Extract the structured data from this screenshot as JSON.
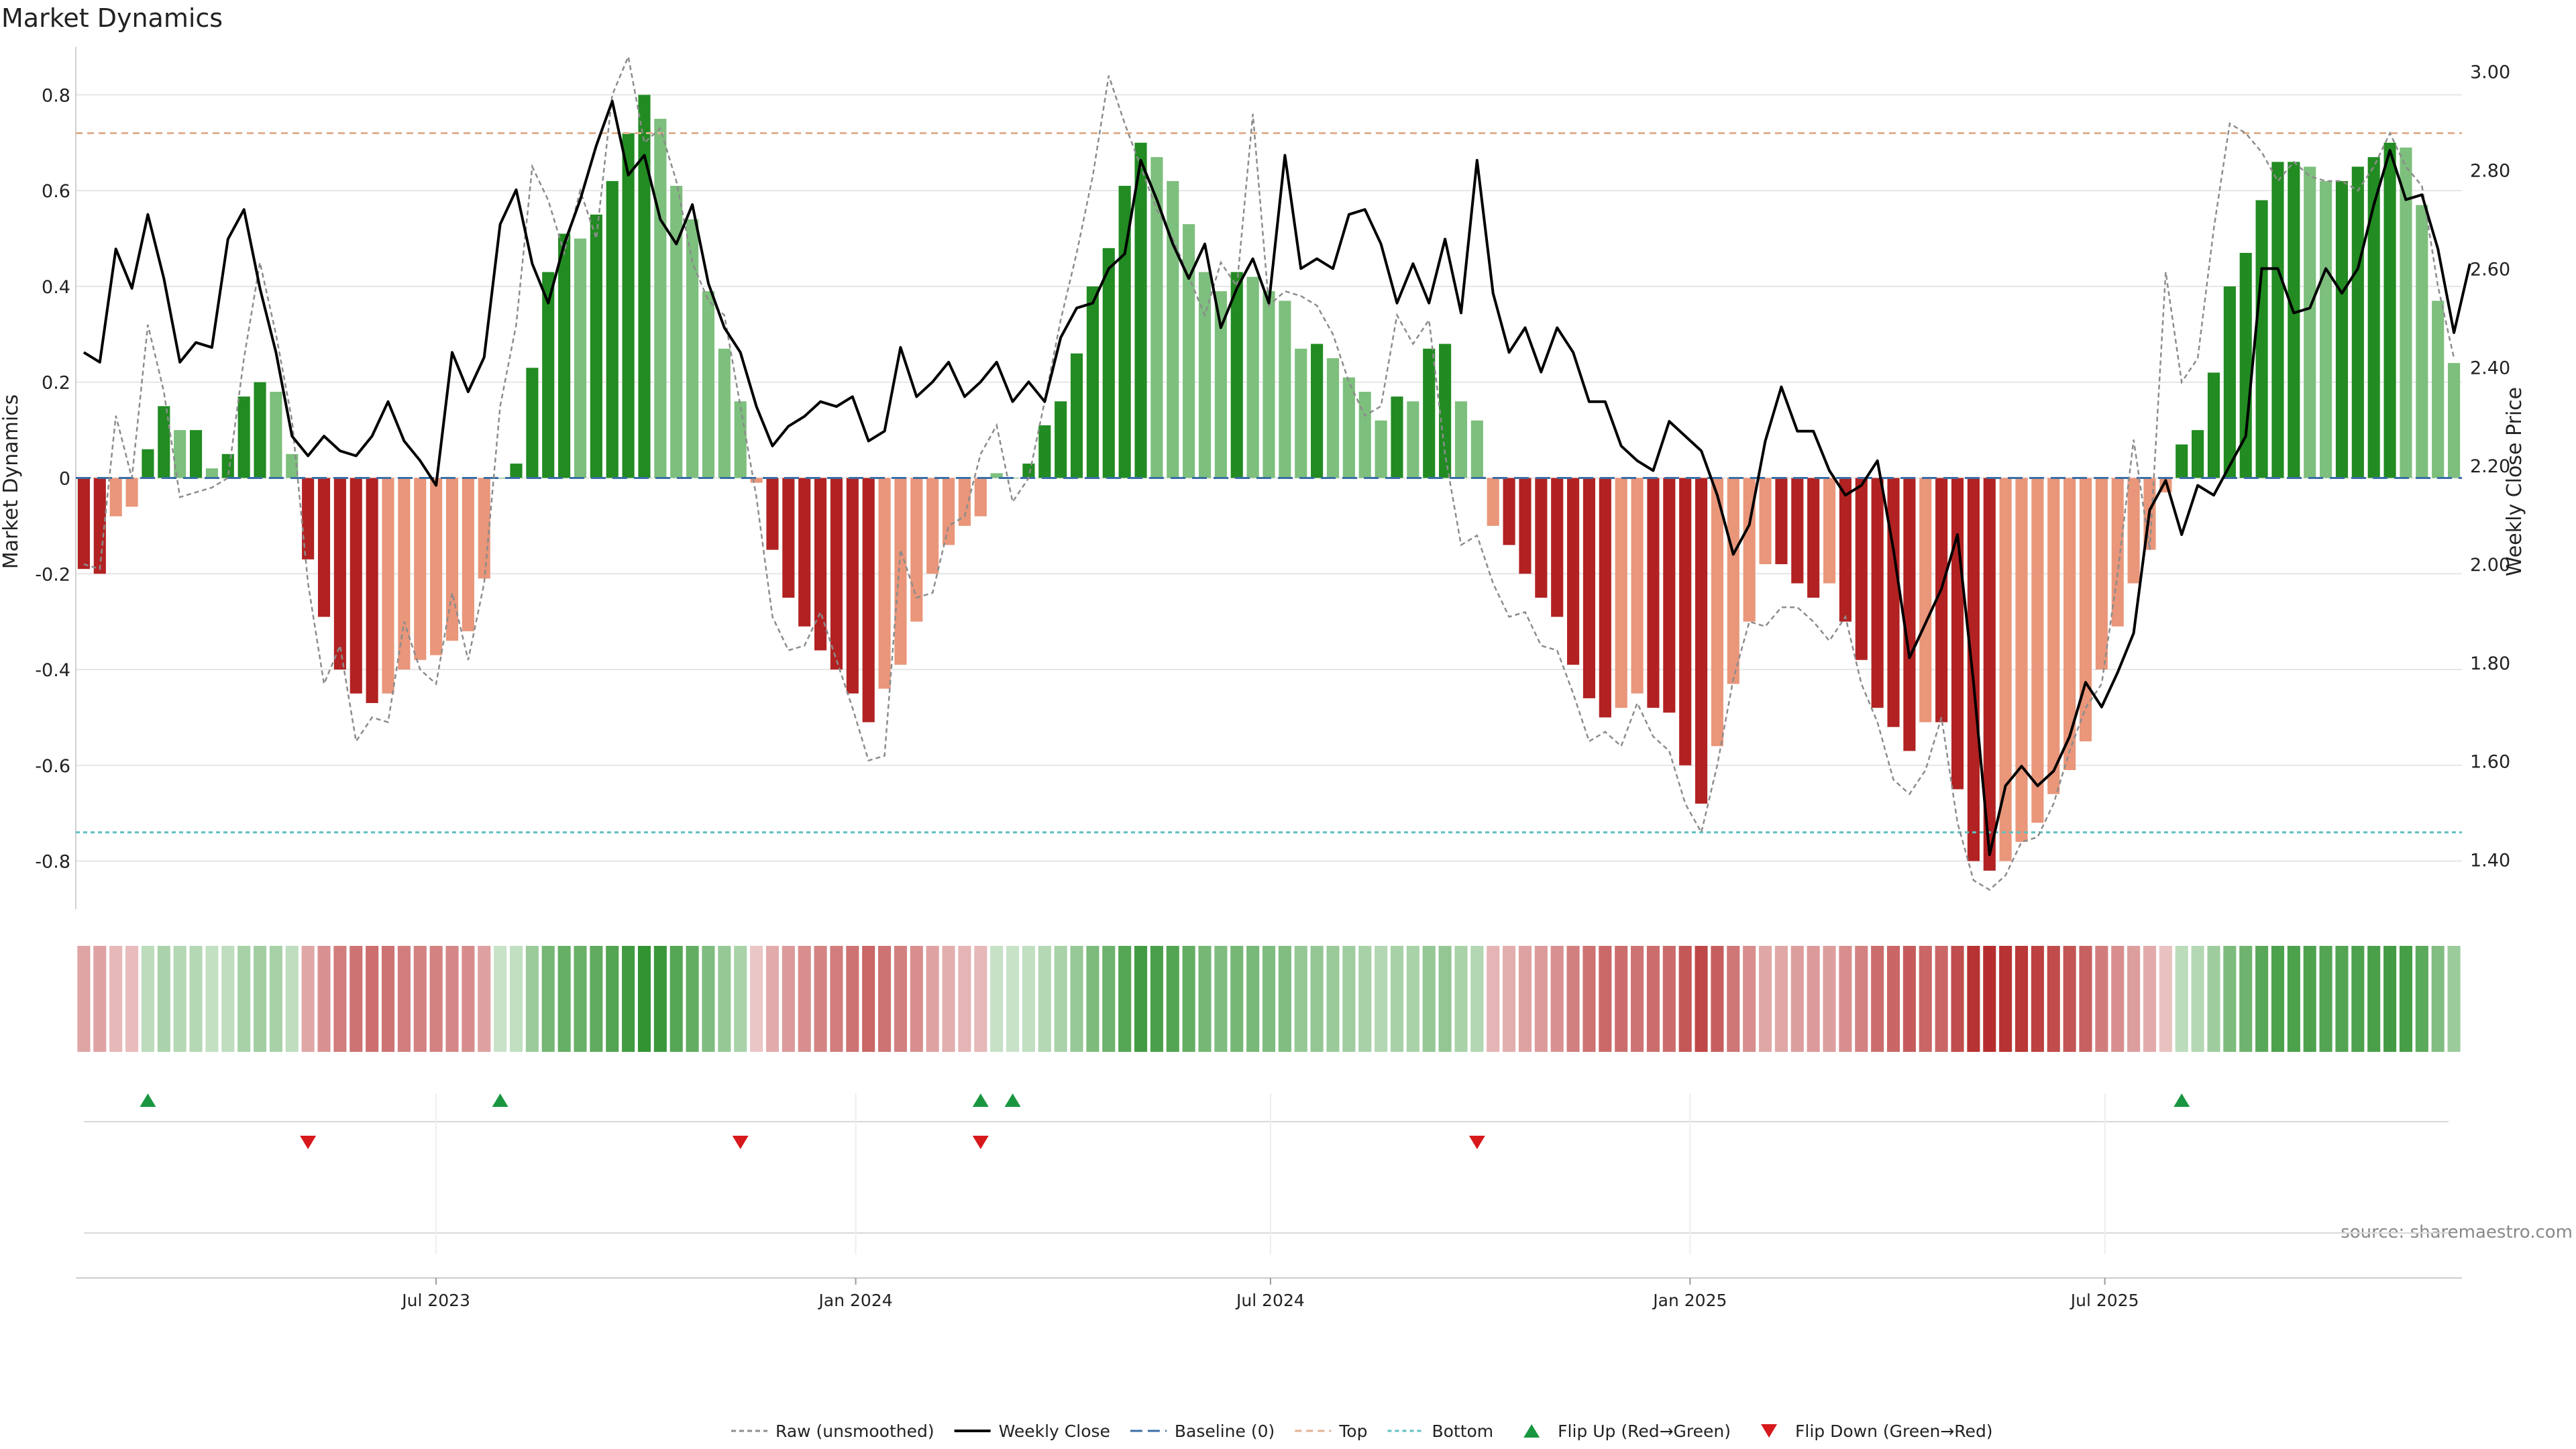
{
  "title": "Market Dynamics",
  "source": "source: sharemaestro.com",
  "colors": {
    "bull_strong": "#228b22",
    "bull_weak": "#7dbf7d",
    "bear_strong": "#b22222",
    "bear_weak": "#e9967a",
    "price": "#000000",
    "raw": "#8c8c8c",
    "top": "#e0b090",
    "bottom": "#5fbfbf",
    "baseline": "#3a6ea5",
    "flip_up": "#1a9641",
    "flip_down": "#d7191c"
  },
  "chart_data": {
    "type": "bar",
    "title": "Market Dynamics",
    "ylabel": "Market Dynamics",
    "y2label": "Weekly Close Price",
    "ylim": [
      -0.9,
      0.9
    ],
    "y2lim": [
      1.3,
      3.05
    ],
    "yticks": [
      "0.8",
      "0.6",
      "0.4",
      "0.2",
      "0",
      "-0.2",
      "-0.4",
      "-0.6",
      "-0.8"
    ],
    "y2ticks": [
      "3.00",
      "2.80",
      "2.60",
      "2.40",
      "2.20",
      "2.00",
      "1.80",
      "1.60",
      "1.40"
    ],
    "xticks": [
      {
        "label": "Jul 2023",
        "week": 22.5
      },
      {
        "label": "Jan 2024",
        "week": 48.7
      },
      {
        "label": "Jul 2024",
        "week": 74.6
      },
      {
        "label": "Jan 2025",
        "week": 100.8
      },
      {
        "label": "Jul 2025",
        "week": 126.7
      }
    ],
    "top_level": 0.72,
    "bottom_level": -0.74,
    "grid": true,
    "legend_position": "bottom",
    "legend": [
      {
        "key": "raw",
        "label": "Raw (unsmoothed)"
      },
      {
        "key": "close",
        "label": "Weekly Close"
      },
      {
        "key": "baseline",
        "label": "Baseline (0)"
      },
      {
        "key": "top",
        "label": "Top"
      },
      {
        "key": "bottom",
        "label": "Bottom"
      },
      {
        "key": "flip_up",
        "label": "Flip Up (Red→Green)"
      },
      {
        "key": "flip_down",
        "label": "Flip Down (Green→Red)"
      }
    ],
    "dynamics": [
      -0.19,
      -0.2,
      -0.08,
      -0.06,
      0.06,
      0.15,
      0.1,
      0.1,
      0.02,
      0.05,
      0.17,
      0.2,
      0.18,
      0.05,
      -0.17,
      -0.29,
      -0.4,
      -0.45,
      -0.47,
      -0.45,
      -0.4,
      -0.38,
      -0.37,
      -0.34,
      -0.32,
      -0.21,
      0.0,
      0.03,
      0.23,
      0.43,
      0.51,
      0.5,
      0.55,
      0.62,
      0.72,
      0.8,
      0.75,
      0.61,
      0.54,
      0.39,
      0.27,
      0.16,
      -0.01,
      -0.15,
      -0.25,
      -0.31,
      -0.36,
      -0.4,
      -0.45,
      -0.51,
      -0.44,
      -0.39,
      -0.3,
      -0.2,
      -0.14,
      -0.1,
      -0.08,
      0.01,
      0.0,
      0.03,
      0.11,
      0.16,
      0.26,
      0.4,
      0.48,
      0.61,
      0.7,
      0.67,
      0.62,
      0.53,
      0.43,
      0.39,
      0.43,
      0.42,
      0.39,
      0.37,
      0.27,
      0.28,
      0.25,
      0.21,
      0.18,
      0.12,
      0.17,
      0.16,
      0.27,
      0.28,
      0.16,
      0.12,
      -0.1,
      -0.14,
      -0.2,
      -0.25,
      -0.29,
      -0.39,
      -0.46,
      -0.5,
      -0.48,
      -0.45,
      -0.48,
      -0.49,
      -0.6,
      -0.68,
      -0.56,
      -0.43,
      -0.3,
      -0.18,
      -0.18,
      -0.22,
      -0.25,
      -0.22,
      -0.3,
      -0.38,
      -0.48,
      -0.52,
      -0.57,
      -0.51,
      -0.51,
      -0.65,
      -0.8,
      -0.82,
      -0.8,
      -0.76,
      -0.72,
      -0.66,
      -0.61,
      -0.55,
      -0.4,
      -0.31,
      -0.22,
      -0.15,
      -0.03,
      0.07,
      0.1,
      0.22,
      0.4,
      0.47,
      0.58,
      0.66,
      0.66,
      0.65,
      0.62,
      0.62,
      0.65,
      0.67,
      0.7,
      0.69,
      0.57,
      0.37,
      0.24
    ],
    "raw": [
      -0.18,
      -0.19,
      0.13,
      0.0,
      0.32,
      0.18,
      -0.04,
      -0.03,
      -0.02,
      0.0,
      0.25,
      0.45,
      0.3,
      0.12,
      -0.22,
      -0.43,
      -0.35,
      -0.55,
      -0.5,
      -0.51,
      -0.3,
      -0.4,
      -0.43,
      -0.24,
      -0.38,
      -0.22,
      0.15,
      0.32,
      0.65,
      0.58,
      0.47,
      0.6,
      0.5,
      0.8,
      0.88,
      0.7,
      0.73,
      0.62,
      0.45,
      0.37,
      0.34,
      0.15,
      -0.04,
      -0.29,
      -0.36,
      -0.35,
      -0.28,
      -0.38,
      -0.48,
      -0.59,
      -0.58,
      -0.15,
      -0.25,
      -0.24,
      -0.1,
      -0.08,
      0.05,
      0.11,
      -0.05,
      0.0,
      0.16,
      0.33,
      0.47,
      0.63,
      0.84,
      0.74,
      0.65,
      0.56,
      0.5,
      0.42,
      0.34,
      0.45,
      0.4,
      0.76,
      0.36,
      0.39,
      0.38,
      0.36,
      0.3,
      0.2,
      0.13,
      0.15,
      0.34,
      0.28,
      0.33,
      0.05,
      -0.14,
      -0.12,
      -0.22,
      -0.29,
      -0.28,
      -0.35,
      -0.36,
      -0.45,
      -0.55,
      -0.53,
      -0.56,
      -0.47,
      -0.54,
      -0.57,
      -0.68,
      -0.74,
      -0.6,
      -0.42,
      -0.3,
      -0.31,
      -0.27,
      -0.27,
      -0.3,
      -0.34,
      -0.29,
      -0.43,
      -0.51,
      -0.63,
      -0.66,
      -0.61,
      -0.5,
      -0.72,
      -0.84,
      -0.86,
      -0.83,
      -0.76,
      -0.75,
      -0.68,
      -0.57,
      -0.48,
      -0.43,
      -0.2,
      0.08,
      -0.15,
      0.43,
      0.2,
      0.25,
      0.52,
      0.74,
      0.72,
      0.68,
      0.62,
      0.66,
      0.63,
      0.62,
      0.62,
      0.6,
      0.65,
      0.72,
      0.65,
      0.61,
      0.4,
      0.25
    ],
    "close": [
      2.43,
      2.41,
      2.64,
      2.56,
      2.71,
      2.58,
      2.41,
      2.45,
      2.44,
      2.66,
      2.72,
      2.56,
      2.43,
      2.26,
      2.22,
      2.26,
      2.23,
      2.22,
      2.26,
      2.33,
      2.25,
      2.21,
      2.16,
      2.43,
      2.35,
      2.42,
      2.69,
      2.76,
      2.61,
      2.53,
      2.65,
      2.74,
      2.85,
      2.94,
      2.79,
      2.83,
      2.7,
      2.65,
      2.73,
      2.57,
      2.48,
      2.43,
      2.32,
      2.24,
      2.28,
      2.3,
      2.33,
      2.32,
      2.34,
      2.25,
      2.27,
      2.44,
      2.34,
      2.37,
      2.41,
      2.34,
      2.37,
      2.41,
      2.33,
      2.37,
      2.33,
      2.46,
      2.52,
      2.53,
      2.6,
      2.63,
      2.82,
      2.74,
      2.65,
      2.58,
      2.65,
      2.48,
      2.56,
      2.62,
      2.53,
      2.83,
      2.6,
      2.62,
      2.6,
      2.71,
      2.72,
      2.65,
      2.53,
      2.61,
      2.53,
      2.66,
      2.51,
      2.82,
      2.55,
      2.43,
      2.48,
      2.39,
      2.48,
      2.43,
      2.33,
      2.33,
      2.24,
      2.21,
      2.19,
      2.29,
      2.26,
      2.23,
      2.14,
      2.02,
      2.08,
      2.25,
      2.36,
      2.27,
      2.27,
      2.19,
      2.14,
      2.16,
      2.21,
      2.03,
      1.81,
      1.88,
      1.95,
      2.06,
      1.76,
      1.41,
      1.55,
      1.59,
      1.55,
      1.58,
      1.65,
      1.76,
      1.71,
      1.78,
      1.86,
      2.11,
      2.17,
      2.06,
      2.16,
      2.14,
      2.2,
      2.26,
      2.6,
      2.6,
      2.51,
      2.52,
      2.6,
      2.55,
      2.6,
      2.73,
      2.84,
      2.74,
      2.75,
      2.64,
      2.47,
      2.61
    ],
    "flip_up": [
      4,
      26,
      56,
      58,
      131
    ],
    "flip_down": [
      14,
      41,
      56,
      87
    ]
  }
}
